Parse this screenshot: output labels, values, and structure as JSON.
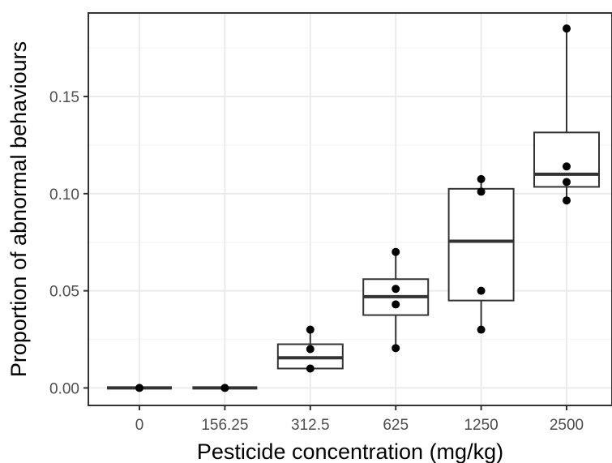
{
  "chart_data": {
    "type": "box",
    "xlabel": "Pesticide concentration (mg/kg)",
    "ylabel": "Proportion of abnormal behaviours",
    "categories": [
      "0",
      "156.25",
      "312.5",
      "625",
      "1250",
      "2500"
    ],
    "y_ticks": [
      0.0,
      0.05,
      0.1,
      0.15
    ],
    "y_tick_labels": [
      "0.00",
      "0.05",
      "0.10",
      "0.15"
    ],
    "ylim": [
      -0.009,
      0.193
    ],
    "grid": true,
    "legend": "none",
    "boxes": [
      {
        "category": "0",
        "min": 0.0,
        "q1": 0.0,
        "median": 0.0,
        "q3": 0.0,
        "max": 0.0
      },
      {
        "category": "156.25",
        "min": 0.0,
        "q1": 0.0,
        "median": 0.0,
        "q3": 0.0,
        "max": 0.0
      },
      {
        "category": "312.5",
        "min": 0.01,
        "q1": 0.01,
        "median": 0.0155,
        "q3": 0.0225,
        "max": 0.03
      },
      {
        "category": "625",
        "min": 0.0205,
        "q1": 0.0375,
        "median": 0.047,
        "q3": 0.056,
        "max": 0.07
      },
      {
        "category": "1250",
        "min": 0.03,
        "q1": 0.045,
        "median": 0.0755,
        "q3": 0.1025,
        "max": 0.1075
      },
      {
        "category": "2500",
        "min": 0.0965,
        "q1": 0.1035,
        "median": 0.11,
        "q3": 0.1315,
        "max": 0.185
      }
    ],
    "points": [
      {
        "category": "0",
        "y": 0.0
      },
      {
        "category": "156.25",
        "y": 0.0
      },
      {
        "category": "312.5",
        "y": 0.03
      },
      {
        "category": "312.5",
        "y": 0.02
      },
      {
        "category": "312.5",
        "y": 0.01
      },
      {
        "category": "625",
        "y": 0.07
      },
      {
        "category": "625",
        "y": 0.051
      },
      {
        "category": "625",
        "y": 0.043
      },
      {
        "category": "625",
        "y": 0.0205
      },
      {
        "category": "1250",
        "y": 0.1075
      },
      {
        "category": "1250",
        "y": 0.101
      },
      {
        "category": "1250",
        "y": 0.05
      },
      {
        "category": "1250",
        "y": 0.03
      },
      {
        "category": "2500",
        "y": 0.185
      },
      {
        "category": "2500",
        "y": 0.114
      },
      {
        "category": "2500",
        "y": 0.106
      },
      {
        "category": "2500",
        "y": 0.0965
      }
    ],
    "colors": {
      "grid_major": "#ebebeb",
      "grid_minor": "#f5f5f5",
      "box_line": "#333333",
      "point": "#000000",
      "panel_border": "#333333",
      "tick_label": "#4d4d4d"
    }
  }
}
